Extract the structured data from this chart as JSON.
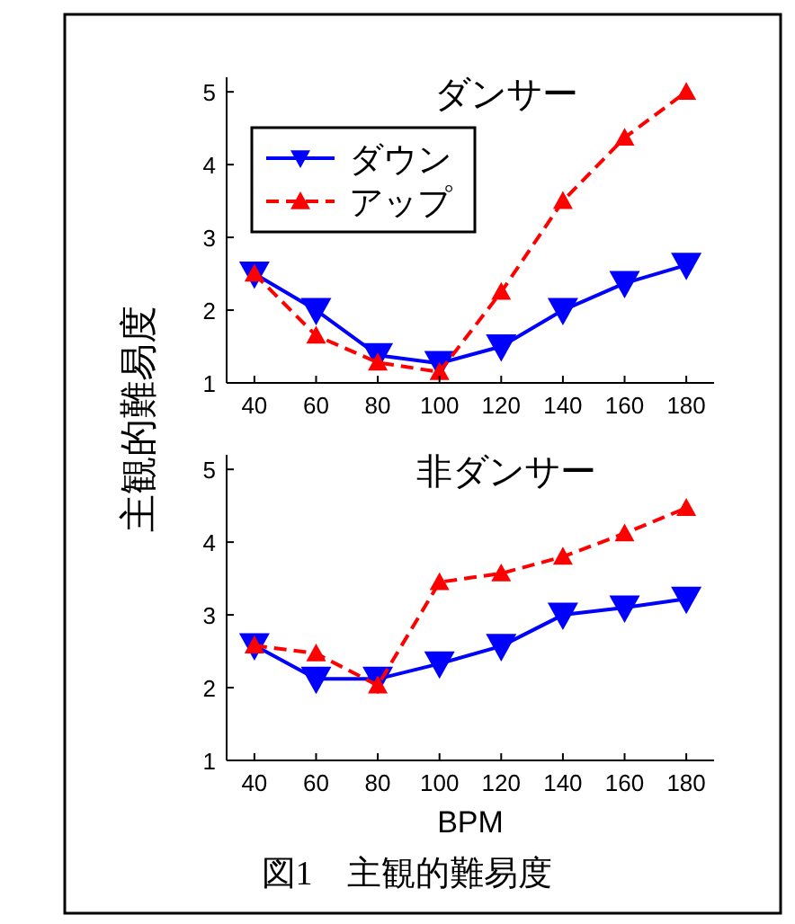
{
  "chart_data": [
    {
      "type": "line",
      "title": "ダンサー",
      "ylabel": "主観的難易度",
      "x": [
        40,
        60,
        80,
        100,
        120,
        140,
        160,
        180
      ],
      "xlim": [
        31,
        189
      ],
      "xticks": [
        40,
        60,
        80,
        100,
        120,
        140,
        160,
        180
      ],
      "ylim": [
        1,
        5.2
      ],
      "yticks": [
        1,
        2,
        3,
        4,
        5
      ],
      "legend": "top left",
      "series": [
        {
          "name": "ダウン",
          "color": "#0000ff",
          "marker": "triangle-down",
          "line_style": "solid",
          "values": [
            2.5,
            2.0,
            1.38,
            1.27,
            1.5,
            2.0,
            2.37,
            2.62
          ]
        },
        {
          "name": "アップ",
          "color": "#ff0000",
          "marker": "triangle",
          "line_style": "dashed",
          "values": [
            2.5,
            1.65,
            1.28,
            1.15,
            2.25,
            3.5,
            4.37,
            5.0
          ]
        }
      ]
    },
    {
      "type": "line",
      "title": "非ダンサー",
      "xlabel": "BPM",
      "x": [
        40,
        60,
        80,
        100,
        120,
        140,
        160,
        180
      ],
      "xlim": [
        31,
        189
      ],
      "xticks": [
        40,
        60,
        80,
        100,
        120,
        140,
        160,
        180
      ],
      "ylim": [
        1,
        5.2
      ],
      "yticks": [
        1,
        2,
        3,
        4,
        5
      ],
      "annotations": [
        "図1　主観的難易度"
      ],
      "series": [
        {
          "color": "#0000ff",
          "marker": "triangle-down",
          "line_style": "solid",
          "values": [
            2.58,
            2.12,
            2.12,
            2.33,
            2.57,
            3.0,
            3.1,
            3.22
          ]
        },
        {
          "color": "#ff0000",
          "marker": "triangle",
          "line_style": "dashed",
          "values": [
            2.58,
            2.47,
            2.03,
            3.45,
            3.57,
            3.8,
            4.12,
            4.47
          ]
        }
      ]
    }
  ]
}
